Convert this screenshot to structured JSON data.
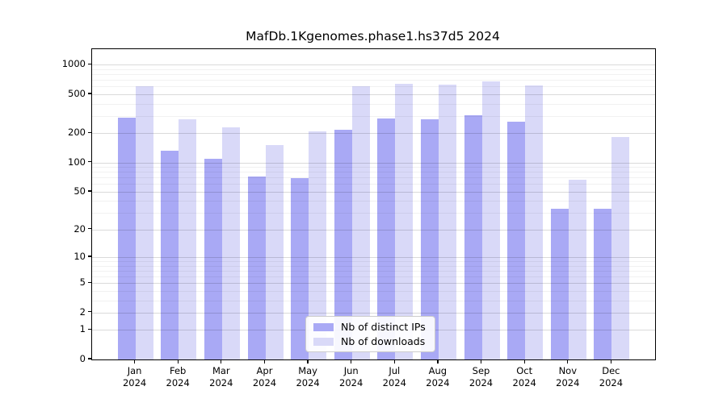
{
  "title": "MafDb.1Kgenomes.phase1.hs37d5 2024",
  "colors": {
    "distinct_ips_bar": "#a9a9f5",
    "downloads_bar": "#d9d9f8",
    "grid_major": "#d9d9d9",
    "grid_minor": "#ececec",
    "axis": "#000000",
    "legend_border": "#cccccc"
  },
  "chart_data": {
    "type": "bar",
    "title": "MafDb.1Kgenomes.phase1.hs37d5 2024",
    "y_scale": "log10(value+1)",
    "grid": "on",
    "legend_position": "lower center",
    "categories": [
      "Jan 2024",
      "Feb 2024",
      "Mar 2024",
      "Apr 2024",
      "May 2024",
      "Jun 2024",
      "Jul 2024",
      "Aug 2024",
      "Sep 2024",
      "Oct 2024",
      "Nov 2024",
      "Dec 2024"
    ],
    "x_tick_months": [
      "Jan",
      "Feb",
      "Mar",
      "Apr",
      "May",
      "Jun",
      "Jul",
      "Aug",
      "Sep",
      "Oct",
      "Nov",
      "Dec"
    ],
    "x_tick_year": "2024",
    "series": [
      {
        "name": "Nb of distinct IPs",
        "color": "#a9a9f5",
        "values": [
          290,
          132,
          110,
          72,
          69,
          218,
          282,
          278,
          304,
          264,
          33,
          33
        ]
      },
      {
        "name": "Nb of downloads",
        "color": "#d9d9f8",
        "values": [
          600,
          278,
          230,
          150,
          209,
          600,
          640,
          630,
          675,
          615,
          66,
          182
        ]
      }
    ],
    "y_ticks": [
      0,
      1,
      2,
      5,
      10,
      20,
      50,
      100,
      200,
      500,
      1000
    ],
    "y_minor_gridlines": [
      3,
      4,
      6,
      7,
      8,
      9,
      30,
      40,
      60,
      70,
      80,
      90,
      300,
      400,
      600,
      700,
      800,
      900
    ],
    "ylim": [
      0,
      1440
    ]
  }
}
